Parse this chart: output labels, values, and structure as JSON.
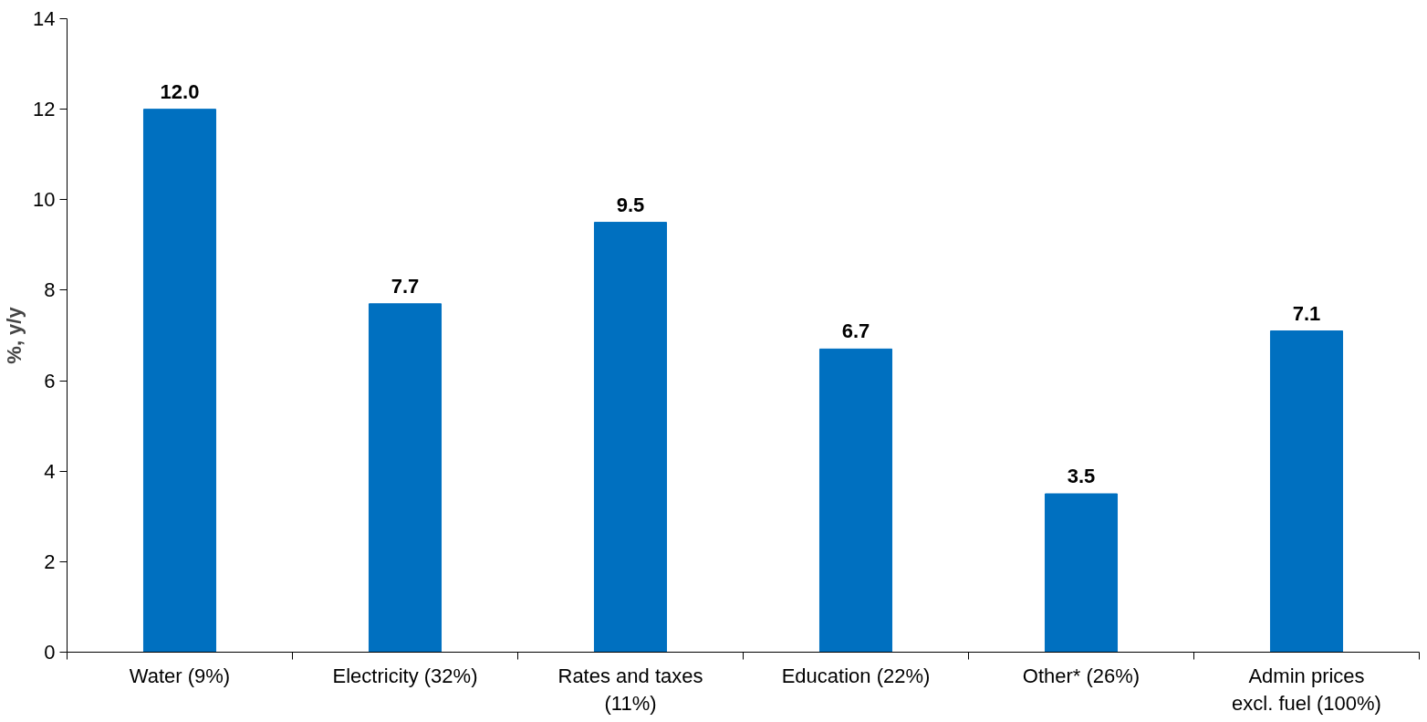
{
  "chart_data": {
    "type": "bar",
    "ylabel": "%, y/y",
    "categories": [
      "Water (9%)",
      "Electricity (32%)",
      "Rates and taxes\n(11%)",
      "Education (22%)",
      "Other* (26%)",
      "Admin prices\nexcl. fuel (100%)"
    ],
    "values": [
      12.0,
      7.7,
      9.5,
      6.7,
      3.5,
      7.1
    ],
    "value_labels": [
      "12.0",
      "7.7",
      "9.5",
      "6.7",
      "3.5",
      "7.1"
    ],
    "color": "#0070c0",
    "ylim": [
      0,
      14
    ],
    "yticks": [
      0,
      2,
      4,
      6,
      8,
      10,
      12,
      14
    ],
    "grid": false
  }
}
